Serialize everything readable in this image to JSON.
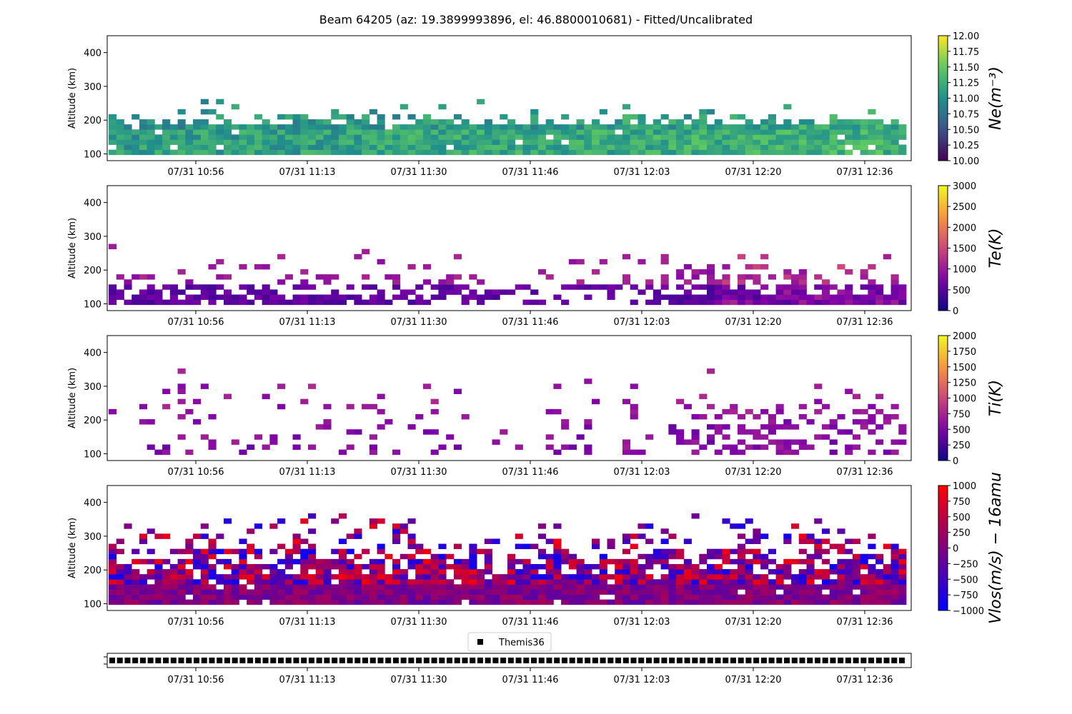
{
  "figure": {
    "title": "Beam 64205 (az: 19.3899993896, el: 46.8800010681) - Fitted/Uncalibrated"
  },
  "chart_data": [
    {
      "type": "heatmap",
      "ylabel": "Altitude (km)",
      "xlabel": "",
      "xticks": [
        "07/31 10:56",
        "07/31 11:13",
        "07/31 11:30",
        "07/31 11:46",
        "07/31 12:03",
        "07/31 12:20",
        "07/31 12:36"
      ],
      "yticks": [
        100,
        200,
        300,
        400
      ],
      "ylim": [
        80,
        450
      ],
      "colorbar": {
        "label": "Ne(m⁻³)",
        "min": 10.0,
        "max": 12.0,
        "ticks": [
          "10.00",
          "10.25",
          "10.50",
          "10.75",
          "11.00",
          "11.25",
          "11.50",
          "11.75",
          "12.00"
        ],
        "colormap": "viridis"
      },
      "description_value": "log10 electron density"
    },
    {
      "type": "heatmap",
      "ylabel": "Altitude (km)",
      "xticks": [
        "07/31 10:56",
        "07/31 11:13",
        "07/31 11:30",
        "07/31 11:46",
        "07/31 12:03",
        "07/31 12:20",
        "07/31 12:36"
      ],
      "yticks": [
        100,
        200,
        300,
        400
      ],
      "ylim": [
        80,
        450
      ],
      "colorbar": {
        "label": "Te(K)",
        "min": 0,
        "max": 3000,
        "ticks": [
          "0",
          "500",
          "1000",
          "1500",
          "2000",
          "2500",
          "3000"
        ],
        "colormap": "plasma"
      }
    },
    {
      "type": "heatmap",
      "ylabel": "Altitude (km)",
      "xticks": [
        "07/31 10:56",
        "07/31 11:13",
        "07/31 11:30",
        "07/31 11:46",
        "07/31 12:03",
        "07/31 12:20",
        "07/31 12:36"
      ],
      "yticks": [
        100,
        200,
        300,
        400
      ],
      "ylim": [
        80,
        450
      ],
      "colorbar": {
        "label": "Ti(K)",
        "min": 0,
        "max": 2000,
        "ticks": [
          "0",
          "250",
          "500",
          "750",
          "1000",
          "1250",
          "1500",
          "1750",
          "2000"
        ],
        "colormap": "plasma"
      }
    },
    {
      "type": "heatmap",
      "ylabel": "Altitude (km)",
      "xticks": [
        "07/31 10:56",
        "07/31 11:13",
        "07/31 11:30",
        "07/31 11:46",
        "07/31 12:03",
        "07/31 12:20",
        "07/31 12:36"
      ],
      "yticks": [
        100,
        200,
        300,
        400
      ],
      "ylim": [
        80,
        450
      ],
      "colorbar": {
        "label": "Vlos(m/s) − 16amu",
        "min": -1000,
        "max": 1000,
        "ticks": [
          "−1000",
          "−750",
          "−500",
          "−250",
          "0",
          "250",
          "500",
          "750",
          "1000"
        ],
        "colormap": "bwr"
      }
    },
    {
      "type": "scatter",
      "xticks": [
        "07/31 10:56",
        "07/31 11:13",
        "07/31 11:30",
        "07/31 11:46",
        "07/31 12:03",
        "07/31 12:20",
        "07/31 12:36"
      ],
      "legend": {
        "entry": "Themis36",
        "placement": "upper-center"
      },
      "marker": "square",
      "marker_color": "#000000",
      "point_count": 104
    }
  ]
}
